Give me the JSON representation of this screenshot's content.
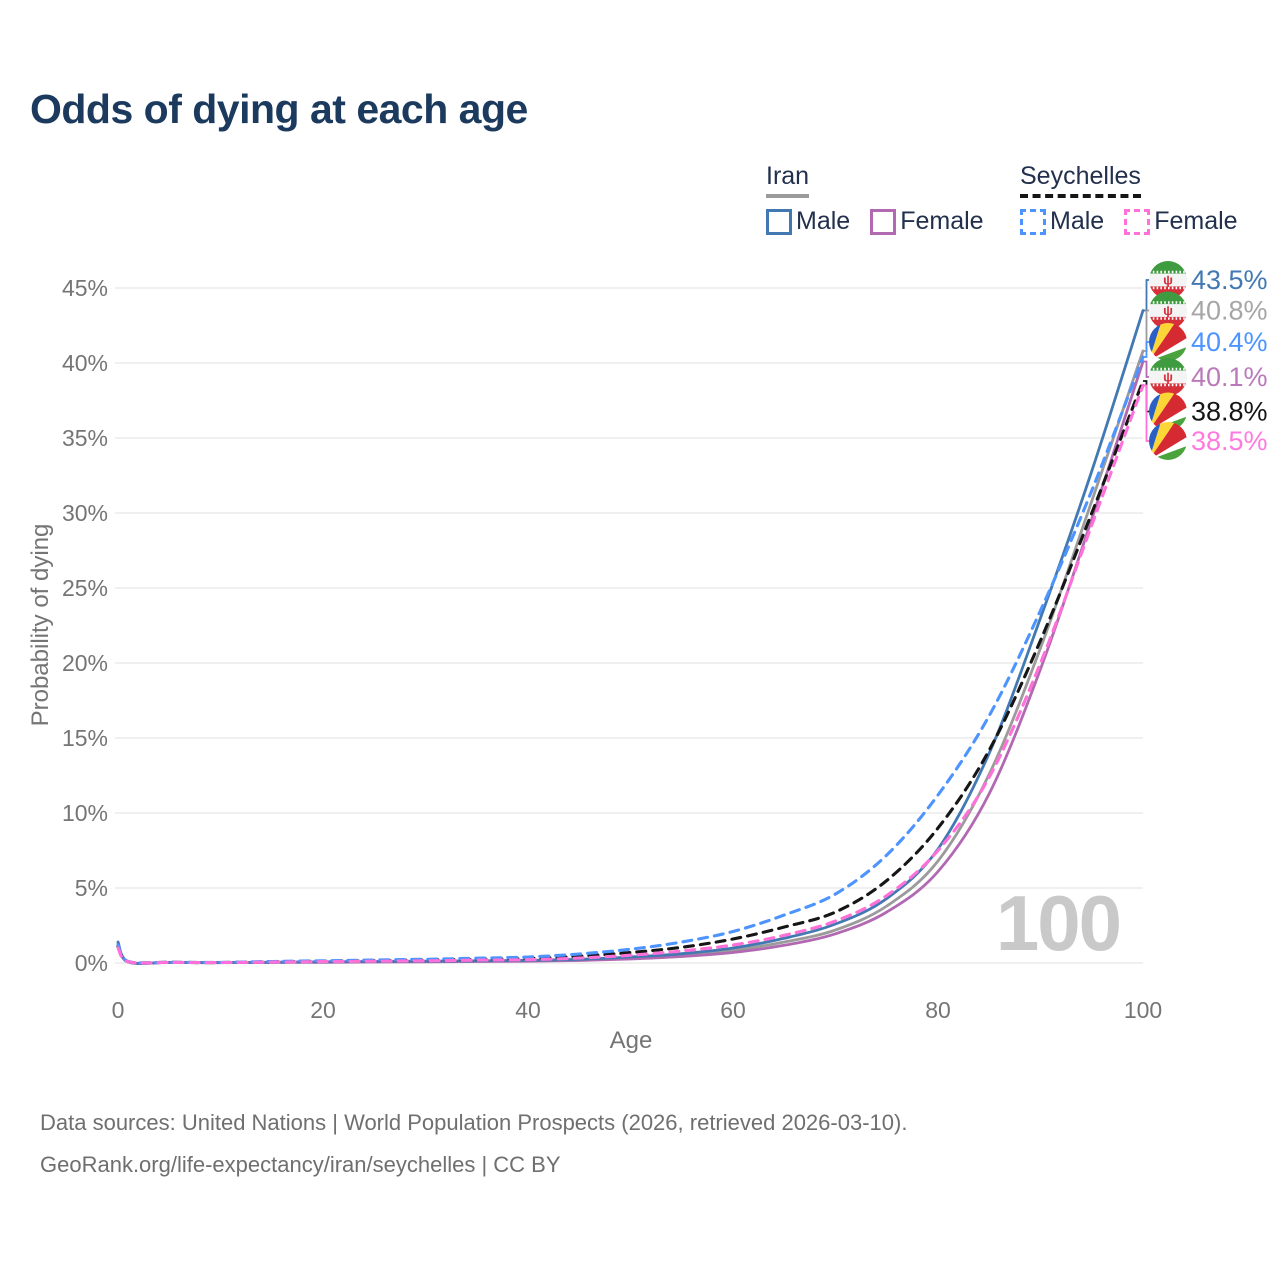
{
  "title": "Odds of dying at each age",
  "legend": {
    "iran": {
      "label": "Iran",
      "male_label": "Male",
      "female_label": "Female"
    },
    "seychelles": {
      "label": "Seychelles",
      "male_label": "Male",
      "female_label": "Female"
    }
  },
  "watermark": "100",
  "footer": {
    "line1": "Data sources: United Nations | World Population Prospects (2026, retrieved 2026-03-10).",
    "line2": "GeoRank.org/life-expectancy/iran/seychelles | CC BY"
  },
  "colors": {
    "title_text": "#1c3a5e",
    "legend_text": "#22304d",
    "axis_text": "#757575",
    "grid": "#ebebeb",
    "watermark": "#c9c9c9",
    "footer_text": "#6f6f6f"
  },
  "chart_data": {
    "type": "line",
    "title": "Odds of dying at each age",
    "xlabel": "Age",
    "ylabel": "Probability of dying",
    "xlim": [
      0,
      100
    ],
    "ylim": [
      0,
      45
    ],
    "x_ticks": [
      0,
      20,
      40,
      60,
      80,
      100
    ],
    "y_ticks": [
      0,
      5,
      10,
      15,
      20,
      25,
      30,
      35,
      40,
      45
    ],
    "y_tick_suffix": "%",
    "grid": "horizontal-only",
    "legend_position": "top-right",
    "hover_age_shown": "100",
    "ages": [
      0,
      1,
      5,
      10,
      15,
      20,
      25,
      30,
      35,
      40,
      45,
      50,
      55,
      60,
      65,
      70,
      75,
      80,
      85,
      90,
      95,
      100
    ],
    "draw_order": [
      "iran_total",
      "iran_female",
      "iran_male",
      "seychelles_total",
      "seychelles_male",
      "seychelles_female"
    ],
    "series": [
      {
        "id": "iran_male",
        "country": "Iran",
        "sex": "Male",
        "color": "#4379b2",
        "label_color": "#4379b2",
        "dash": "solid",
        "flag": "iran",
        "end_label": "43.5%",
        "values": [
          1.4,
          0.08,
          0.04,
          0.03,
          0.05,
          0.08,
          0.1,
          0.12,
          0.15,
          0.18,
          0.25,
          0.4,
          0.62,
          1.0,
          1.65,
          2.6,
          4.3,
          7.6,
          14.0,
          23.0,
          32.8,
          43.5
        ]
      },
      {
        "id": "iran_total",
        "country": "Iran",
        "sex": "Both",
        "color": "#9b9b9b",
        "label_color": "#a6a6a6",
        "dash": "solid",
        "flag": "iran",
        "end_label": "40.8%",
        "values": [
          1.3,
          0.07,
          0.035,
          0.025,
          0.045,
          0.07,
          0.09,
          0.1,
          0.12,
          0.15,
          0.21,
          0.33,
          0.52,
          0.85,
          1.4,
          2.2,
          3.8,
          6.8,
          12.6,
          21.0,
          30.8,
          40.8
        ]
      },
      {
        "id": "seychelles_male",
        "country": "Seychelles",
        "sex": "Male",
        "color": "#4d94ff",
        "label_color": "#4d94ff",
        "dash": "dashed",
        "flag": "seychelles",
        "end_label": "40.4%",
        "values": [
          1.2,
          0.1,
          0.05,
          0.04,
          0.1,
          0.15,
          0.2,
          0.25,
          0.32,
          0.4,
          0.6,
          0.92,
          1.4,
          2.1,
          3.2,
          4.6,
          7.2,
          11.2,
          16.5,
          23.5,
          31.5,
          40.4
        ]
      },
      {
        "id": "iran_female",
        "country": "Iran",
        "sex": "Female",
        "color": "#b169b1",
        "label_color": "#ba7aba",
        "dash": "solid",
        "flag": "iran",
        "end_label": "40.1%",
        "values": [
          1.2,
          0.06,
          0.03,
          0.02,
          0.04,
          0.05,
          0.07,
          0.08,
          0.1,
          0.12,
          0.17,
          0.27,
          0.43,
          0.7,
          1.18,
          1.95,
          3.4,
          6.1,
          11.3,
          19.6,
          29.6,
          40.1
        ]
      },
      {
        "id": "seychelles_total",
        "country": "Seychelles",
        "sex": "Both",
        "color": "#161616",
        "label_color": "#161616",
        "dash": "dashed",
        "flag": "seychelles",
        "end_label": "38.8%",
        "values": [
          1.1,
          0.09,
          0.045,
          0.035,
          0.08,
          0.12,
          0.16,
          0.2,
          0.25,
          0.3,
          0.45,
          0.7,
          1.05,
          1.6,
          2.4,
          3.4,
          5.5,
          9.0,
          14.2,
          21.5,
          30.0,
          38.8
        ]
      },
      {
        "id": "seychelles_female",
        "country": "Seychelles",
        "sex": "Female",
        "color": "#ff70d8",
        "label_color": "#ff7ade",
        "dash": "dashed",
        "flag": "seychelles",
        "end_label": "38.5%",
        "values": [
          1.0,
          0.08,
          0.04,
          0.03,
          0.06,
          0.09,
          0.12,
          0.15,
          0.19,
          0.22,
          0.33,
          0.52,
          0.8,
          1.2,
          1.85,
          2.8,
          4.5,
          7.5,
          12.4,
          20.0,
          29.2,
          38.5
        ]
      }
    ],
    "flag_colors": {
      "iran": {
        "green": "#3f9b3f",
        "white": "#f4f4f4",
        "red": "#d6303a",
        "emblem": "#d6303a"
      },
      "seychelles": {
        "blue": "#2a5fc4",
        "yellow": "#fcd637",
        "red": "#d62a33",
        "white": "#ffffff",
        "green": "#4aa33c"
      }
    }
  }
}
